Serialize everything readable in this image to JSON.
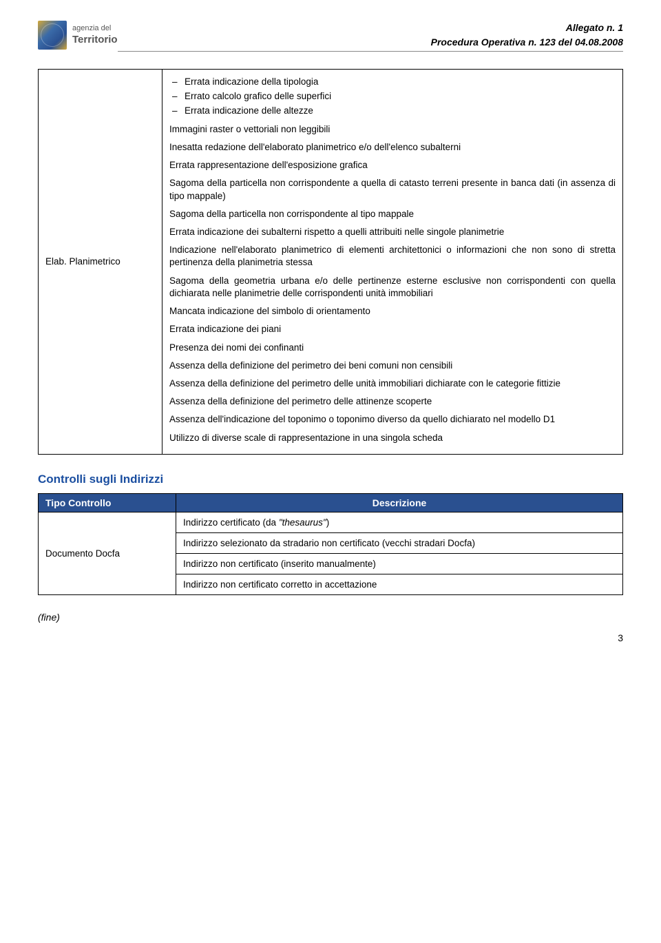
{
  "header": {
    "logo_line1": "agenzia del",
    "logo_line2": "Territorio",
    "allegato": "Allegato n. 1",
    "procedura": "Procedura Operativa n. 123 del 04.08.2008"
  },
  "elab": {
    "row_label": "Elab. Planimetrico",
    "bullets": [
      "Errata indicazione della tipologia",
      "Errato calcolo grafico delle superfici",
      "Errata indicazione delle altezze"
    ],
    "items": [
      "Immagini raster o vettoriali non leggibili",
      "Inesatta redazione dell'elaborato planimetrico e/o dell'elenco subalterni",
      "Errata rappresentazione dell'esposizione grafica",
      "Sagoma della particella non corrispondente a quella di catasto terreni presente in banca dati (in assenza di tipo mappale)",
      "Sagoma della particella non corrispondente al tipo mappale",
      "Errata indicazione dei subalterni rispetto a quelli attribuiti nelle singole planimetrie",
      "Indicazione nell'elaborato planimetrico di elementi architettonici o informazioni che non sono di stretta pertinenza della planimetria stessa",
      "Sagoma della geometria urbana e/o delle pertinenze esterne esclusive non corrispondenti con quella dichiarata nelle planimetrie delle corrispondenti unità immobiliari",
      "Mancata indicazione del simbolo di orientamento",
      "Errata indicazione dei piani",
      "Presenza dei nomi dei confinanti",
      "Assenza della definizione del perimetro dei beni comuni non censibili",
      "Assenza della definizione del perimetro delle unità immobiliari dichiarate con le categorie fittizie",
      "Assenza della definizione del perimetro delle attinenze scoperte",
      "Assenza dell'indicazione del toponimo o toponimo diverso da quello dichiarato nel modello D1",
      "Utilizzo di diverse scale di rappresentazione in una singola scheda"
    ]
  },
  "indirizzi": {
    "section_title": "Controlli sugli Indirizzi",
    "col1": "Tipo Controllo",
    "col2": "Descrizione",
    "row_label": "Documento Docfa",
    "rows": [
      {
        "prefix": "Indirizzo certificato (da ",
        "italic": "\"thesaurus\"",
        "suffix": ")"
      },
      {
        "text": "Indirizzo selezionato da stradario non certificato (vecchi stradari Docfa)"
      },
      {
        "text": "Indirizzo non certificato (inserito manualmente)"
      },
      {
        "text": "Indirizzo non certificato corretto in accettazione"
      }
    ]
  },
  "footer": {
    "fine": "(fine)",
    "page": "3"
  },
  "colors": {
    "heading": "#1a4ea0",
    "th_bg": "#2a5090",
    "th_fg": "#ffffff",
    "border": "#000000"
  }
}
